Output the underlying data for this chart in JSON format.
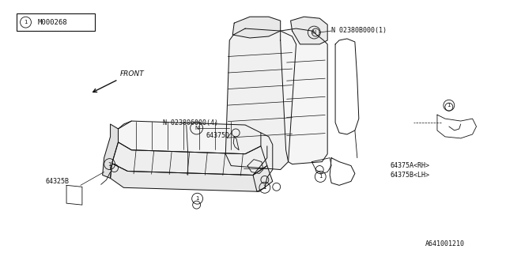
{
  "background_color": "#ffffff",
  "line_color": "#111111",
  "line_width": 0.7,
  "fig_width": 6.4,
  "fig_height": 3.2,
  "dpi": 100,
  "labels": {
    "title_number": "M000268",
    "front": "FRONT",
    "n1": "N 023806000(4)",
    "p1": "64375D",
    "p2": "64325B",
    "n2": "N 02380B000(1)",
    "p3": "64375A<RH>",
    "p4": "64375B<LH>",
    "footer": "A641001210"
  }
}
